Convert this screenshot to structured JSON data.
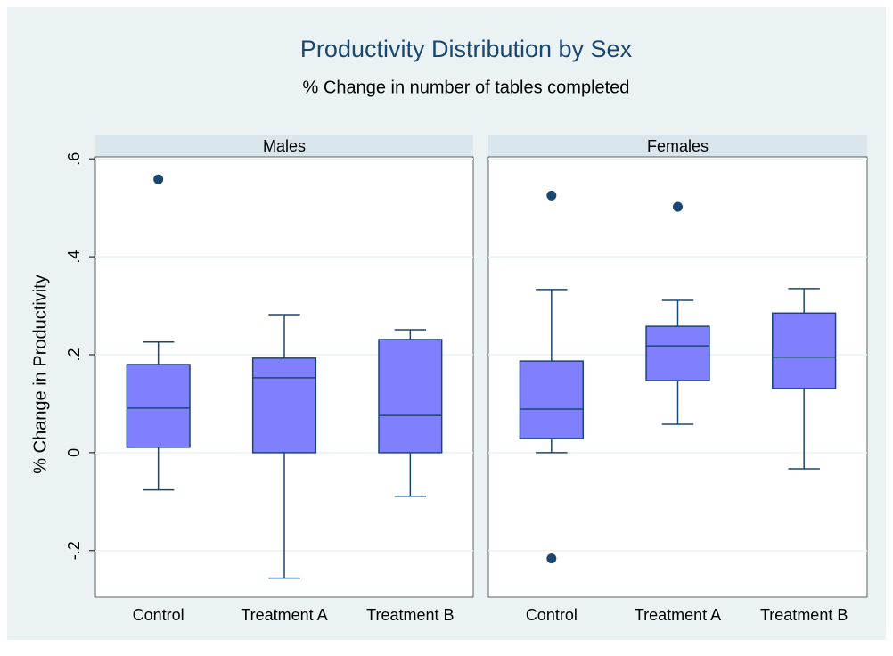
{
  "chart_data": {
    "type": "box",
    "title": "Productivity Distribution by Sex",
    "subtitle": "% Change in number of tables completed",
    "y_label": "% Change in Productivity",
    "ylim": [
      -0.295,
      0.604
    ],
    "yticks": [
      {
        "value": -0.2,
        "label": "-.2"
      },
      0,
      {
        "value": 0.2,
        "label": ".2"
      },
      {
        "value": 0.4,
        "label": ".4"
      },
      {
        "value": 0.6,
        "label": ".6"
      }
    ],
    "grid": true,
    "box_color": "#8080ff",
    "line_color": "#1a476f",
    "panels": [
      {
        "title": "Males",
        "categories": [
          "Control",
          "Treatment A",
          "Treatment B"
        ],
        "boxes": [
          {
            "whisker_low": -0.076,
            "q1": 0.011,
            "median": 0.091,
            "q3": 0.18,
            "whisker_high": 0.226,
            "outliers": [
              0.558
            ]
          },
          {
            "whisker_low": -0.256,
            "q1": 0,
            "median": 0.153,
            "q3": 0.193,
            "whisker_high": 0.282,
            "outliers": []
          },
          {
            "whisker_low": -0.089,
            "q1": 0,
            "median": 0.076,
            "q3": 0.231,
            "whisker_high": 0.251,
            "outliers": []
          }
        ]
      },
      {
        "title": "Females",
        "categories": [
          "Control",
          "Treatment A",
          "Treatment B"
        ],
        "boxes": [
          {
            "whisker_low": 0,
            "q1": 0.029,
            "median": 0.089,
            "q3": 0.187,
            "whisker_high": 0.333,
            "outliers": [
              0.525,
              -0.216
            ]
          },
          {
            "whisker_low": 0.058,
            "q1": 0.147,
            "median": 0.218,
            "q3": 0.258,
            "whisker_high": 0.311,
            "outliers": [
              0.502
            ]
          },
          {
            "whisker_low": -0.033,
            "q1": 0.131,
            "median": 0.195,
            "q3": 0.285,
            "whisker_high": 0.335,
            "outliers": []
          }
        ]
      }
    ]
  }
}
